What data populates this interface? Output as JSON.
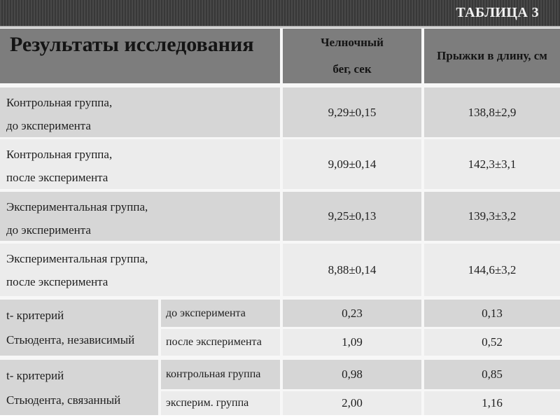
{
  "title": "ТАБЛИЦА 3",
  "colors": {
    "banner_stripe_dark": "#383838",
    "banner_stripe_light": "#484848",
    "banner_text": "#f2f2f2",
    "header_bg": "#7d7d7d",
    "row_dark_bg": "#d6d6d6",
    "row_light_bg": "#ececec",
    "grid_lines": "#f7f7f7",
    "text": "#1f1f1f"
  },
  "table": {
    "header": {
      "title": "Результаты исследования",
      "col2_line1": "Челночный",
      "col2_line2": "бег, сек",
      "col3": "Прыжки в длину, см"
    },
    "rows": [
      {
        "line1": "Контрольная группа,",
        "line2": "до эксперимента",
        "shuttle_run": "9,29±0,15",
        "long_jump": "138,8±2,9"
      },
      {
        "line1": "Контрольная группа,",
        "line2": "после эксперимента",
        "shuttle_run": "9,09±0,14",
        "long_jump": "142,3±3,1"
      },
      {
        "line1": "Экспериментальная группа,",
        "line2": "до эксперимента",
        "shuttle_run": "9,25±0,13",
        "long_jump": "139,3±3,2"
      },
      {
        "line1": "Экспериментальная группа,",
        "line2": "после эксперимента",
        "shuttle_run": "8,88±0,14",
        "long_jump": "144,6±3,2"
      }
    ],
    "t_groups": [
      {
        "line1": "t- критерий",
        "line2": "Стьюдента, независимый",
        "subrows": [
          {
            "label": "до эксперимента",
            "shuttle_run": "0,23",
            "long_jump": "0,13"
          },
          {
            "label": "после эксперимента",
            "shuttle_run": "1,09",
            "long_jump": "0,52"
          }
        ]
      },
      {
        "line1": "t- критерий",
        "line2": "Стьюдента, связанный",
        "subrows": [
          {
            "label": "контрольная группа",
            "shuttle_run": "0,98",
            "long_jump": "0,85"
          },
          {
            "label": "эксперим. группа",
            "shuttle_run": "2,00",
            "long_jump": "1,16"
          }
        ]
      }
    ]
  }
}
